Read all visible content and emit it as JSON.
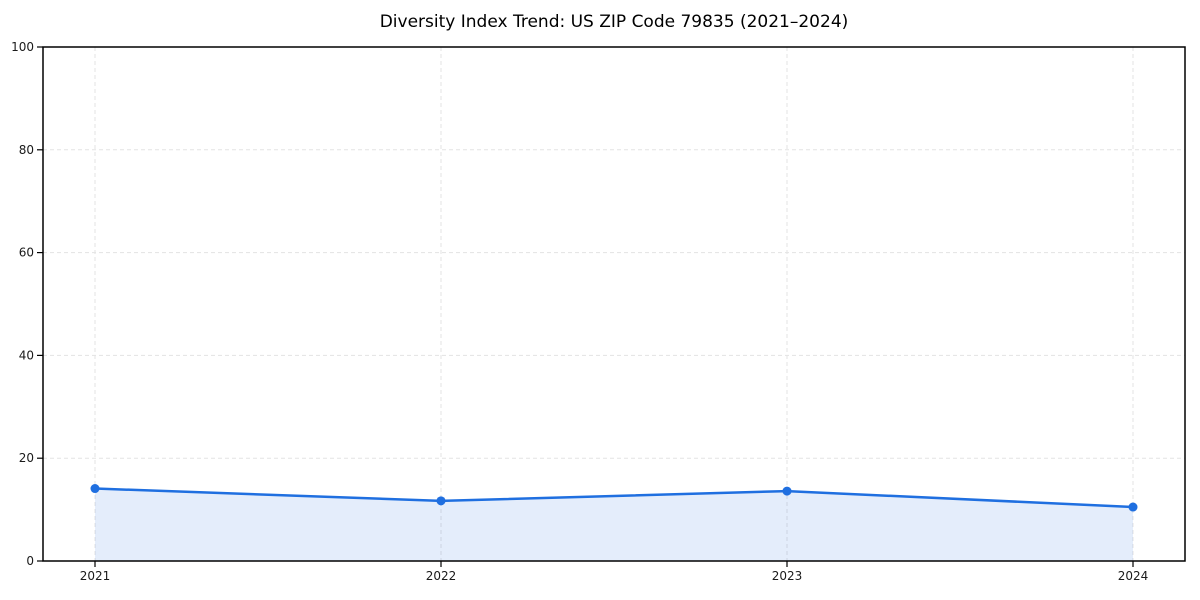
{
  "figure": {
    "background": "#ffffff"
  },
  "chart_data": {
    "type": "area",
    "title": "Diversity Index Trend: US ZIP Code 79835 (2021–2024)",
    "x": [
      2021,
      2022,
      2023,
      2024
    ],
    "xticks": [
      "2021",
      "2022",
      "2023",
      "2024"
    ],
    "yticks": [
      "0",
      "20",
      "40",
      "60",
      "80",
      "100"
    ],
    "ytick_values": [
      0,
      20,
      40,
      60,
      80,
      100
    ],
    "series": [
      {
        "name": "Diversity Index",
        "values": [
          14.1,
          11.7,
          13.6,
          10.5
        ]
      }
    ],
    "xlabel": "",
    "ylabel": "",
    "ylim": [
      0,
      100
    ],
    "grid": true,
    "grid_style": "dashed",
    "legend": "none",
    "colors": {
      "line": "#1f6fe0",
      "marker": "#1f6fe0",
      "fill": "#1f6fe0",
      "grid": "#e3e3e3",
      "spine": "#000000",
      "tick_label": "#1a1a1a"
    },
    "fill_opacity": 0.12
  }
}
